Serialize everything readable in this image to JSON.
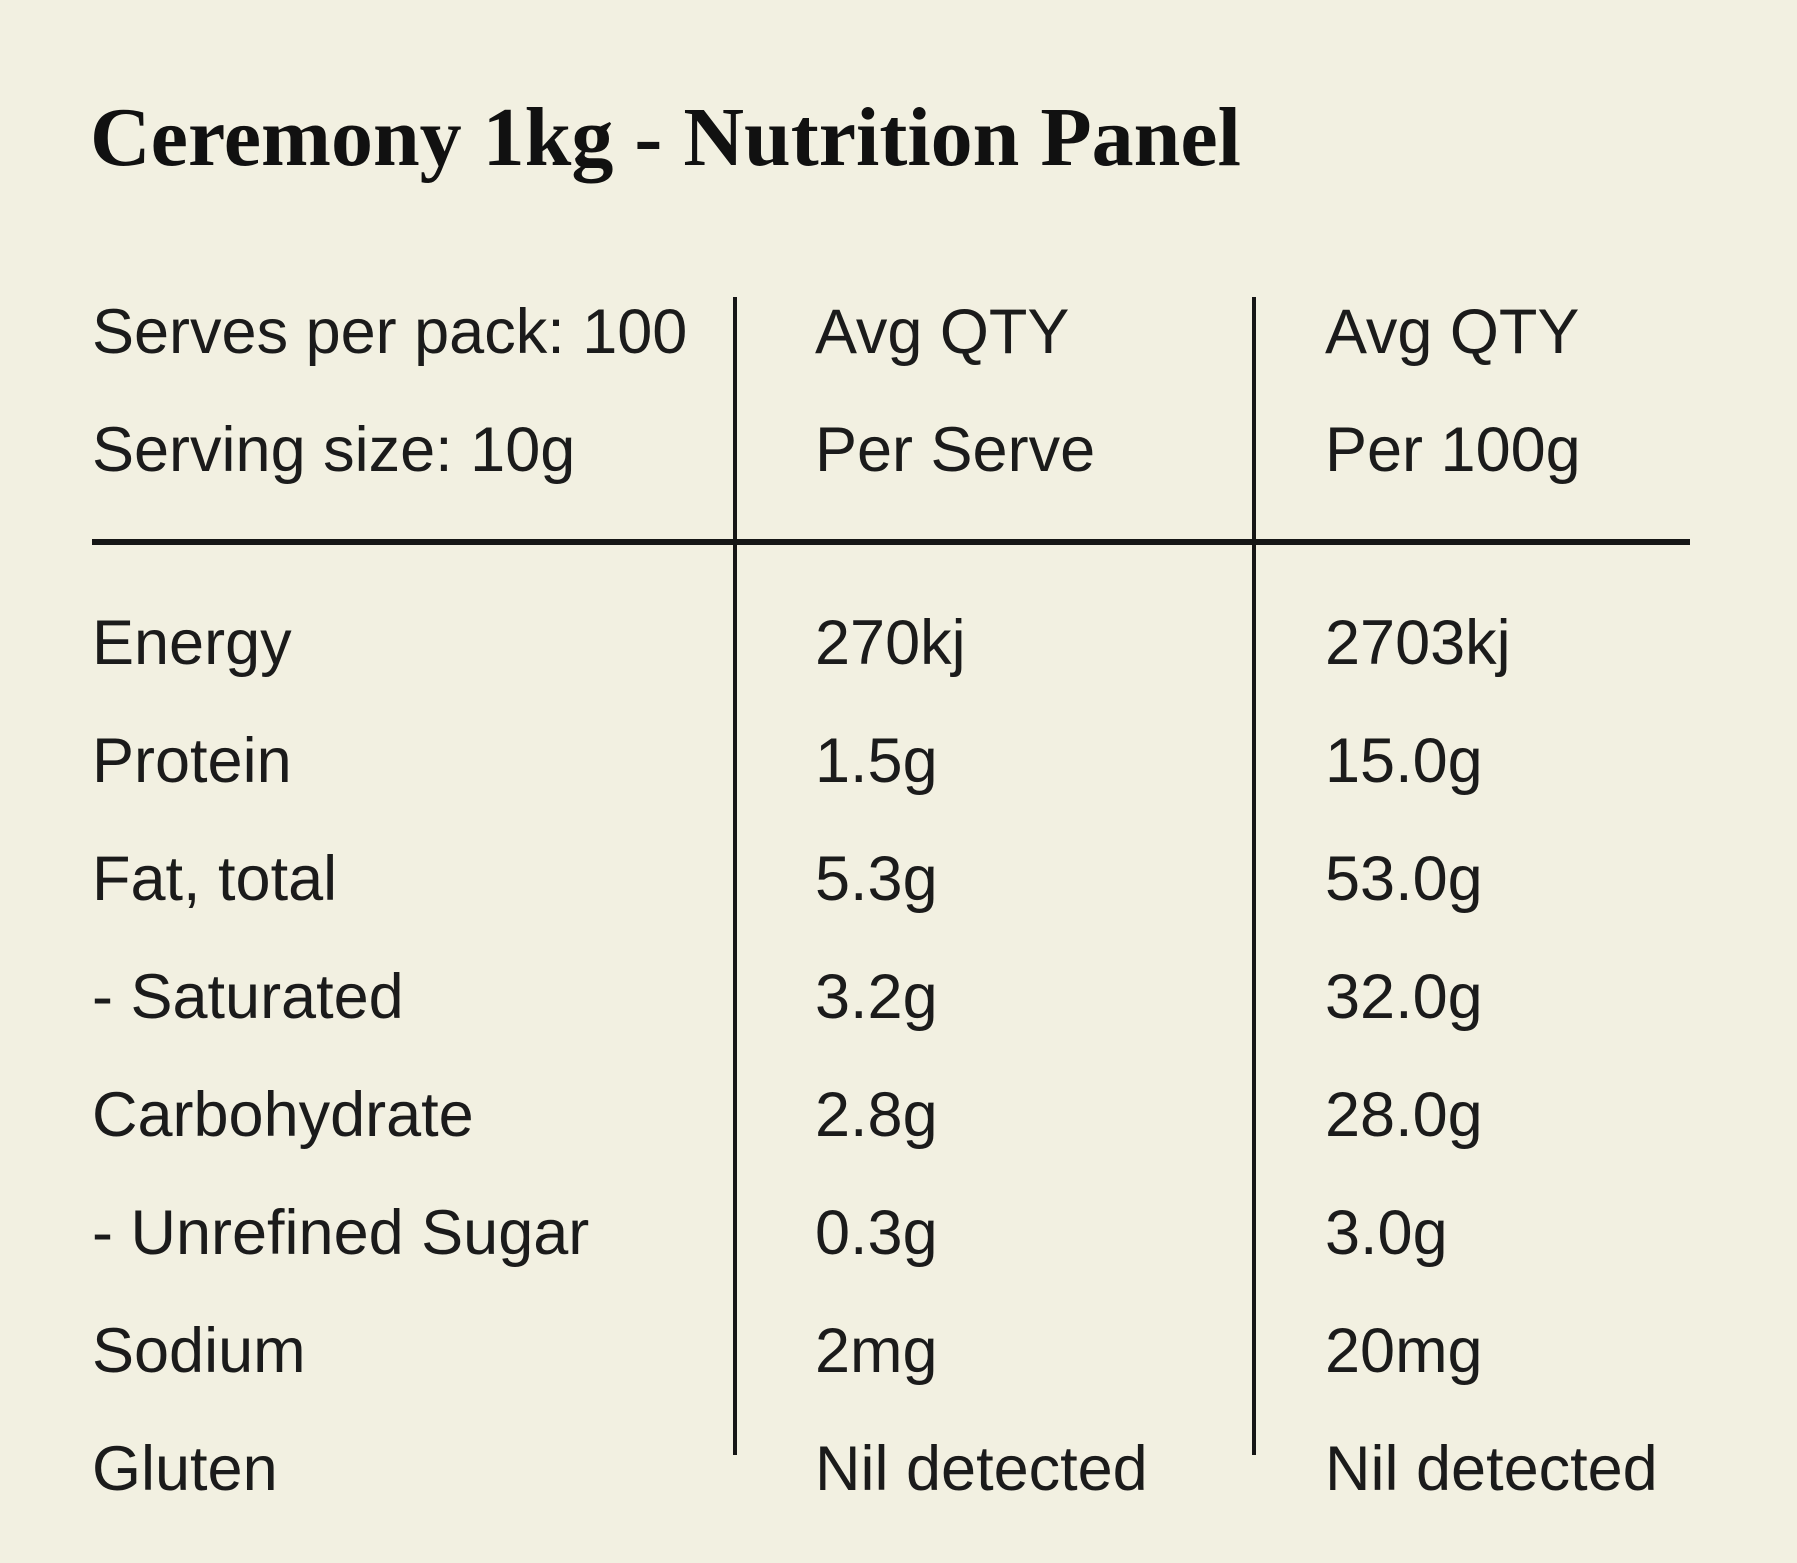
{
  "title": "Ceremony 1kg - Nutrition Panel",
  "colors": {
    "background": "#f2f0e1",
    "text": "#1b1b1b",
    "title_text": "#111111",
    "lines": "#161616"
  },
  "table": {
    "header": {
      "col1": [
        "Serves per pack: 100",
        "Serving size: 10g"
      ],
      "col2": [
        "Avg QTY",
        "Per Serve"
      ],
      "col3": [
        "Avg QTY",
        "Per 100g"
      ]
    },
    "rows": [
      {
        "label": "Energy",
        "per_serve": "270kj",
        "per_100g": "2703kj"
      },
      {
        "label": "Protein",
        "per_serve": "1.5g",
        "per_100g": "15.0g"
      },
      {
        "label": "Fat, total",
        "per_serve": "5.3g",
        "per_100g": "53.0g"
      },
      {
        "label": "- Saturated",
        "per_serve": "3.2g",
        "per_100g": "32.0g"
      },
      {
        "label": "Carbohydrate",
        "per_serve": "2.8g",
        "per_100g": "28.0g"
      },
      {
        "label": "- Unrefined Sugar",
        "per_serve": "0.3g",
        "per_100g": "3.0g"
      },
      {
        "label": "Sodium",
        "per_serve": "2mg",
        "per_100g": "20mg"
      },
      {
        "label": "Gluten",
        "per_serve": "Nil detected",
        "per_100g": "Nil detected"
      }
    ]
  }
}
